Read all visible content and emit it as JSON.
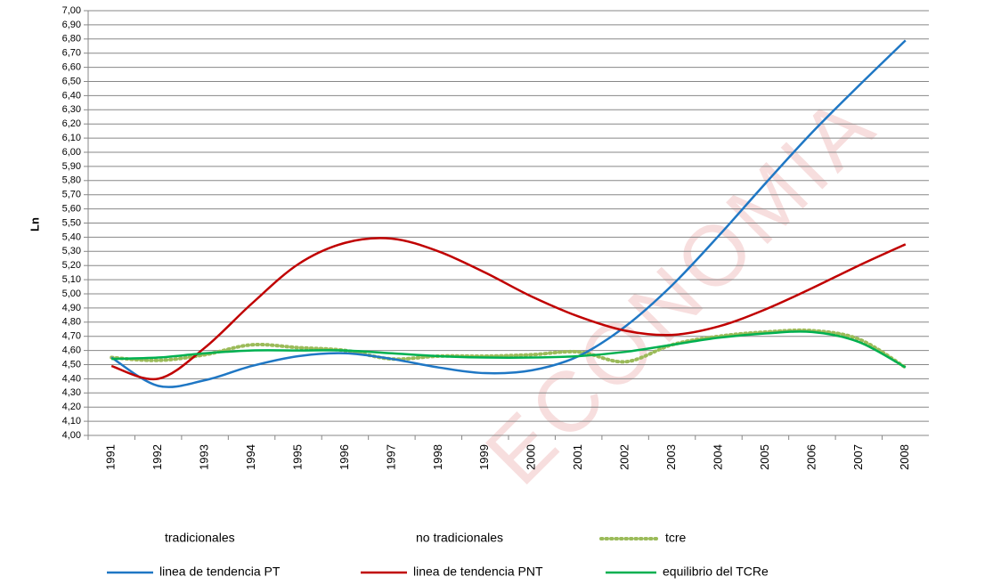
{
  "chart_data": {
    "type": "line",
    "y_label": "Ln",
    "watermark": "ECONOMIA",
    "categories": [
      "1991",
      "1992",
      "1993",
      "1994",
      "1995",
      "1996",
      "1997",
      "1998",
      "1999",
      "2000",
      "2001",
      "2002",
      "2003",
      "2004",
      "2005",
      "2006",
      "2007",
      "2008"
    ],
    "series": [
      {
        "name": "tradicionales",
        "color": "none",
        "values": [
          null,
          null,
          null,
          null,
          null,
          null,
          null,
          null,
          null,
          null,
          null,
          null,
          null,
          null,
          null,
          null,
          null,
          null
        ]
      },
      {
        "name": "no tradicionales",
        "color": "none",
        "values": [
          null,
          null,
          null,
          null,
          null,
          null,
          null,
          null,
          null,
          null,
          null,
          null,
          null,
          null,
          null,
          null,
          null,
          null
        ]
      },
      {
        "name": "tcre",
        "color": "#9bbb59",
        "dash": "dotted",
        "values": [
          4.55,
          4.53,
          4.57,
          4.64,
          4.62,
          4.6,
          4.54,
          4.56,
          4.56,
          4.57,
          4.59,
          4.52,
          4.64,
          4.7,
          4.73,
          4.74,
          4.68,
          4.48
        ]
      },
      {
        "name": "linea de tendencia PT",
        "color": "#1f77c4",
        "values": [
          4.55,
          4.35,
          4.39,
          4.49,
          4.56,
          4.58,
          4.54,
          4.48,
          4.44,
          4.46,
          4.56,
          4.77,
          5.06,
          5.41,
          5.78,
          6.14,
          6.47,
          6.79
        ]
      },
      {
        "name": "linea de tendencia PNT",
        "color": "#c00000",
        "values": [
          4.49,
          4.4,
          4.62,
          4.93,
          5.21,
          5.36,
          5.39,
          5.3,
          5.15,
          4.98,
          4.84,
          4.74,
          4.71,
          4.77,
          4.89,
          5.04,
          5.2,
          5.35
        ]
      },
      {
        "name": "equilibrio del TCRe",
        "color": "#00b050",
        "values": [
          4.54,
          4.55,
          4.58,
          4.6,
          4.6,
          4.6,
          4.58,
          4.56,
          4.55,
          4.55,
          4.56,
          4.59,
          4.64,
          4.69,
          4.72,
          4.73,
          4.66,
          4.48
        ]
      }
    ],
    "ylim": [
      4.0,
      7.0
    ],
    "yticks": [
      {
        "value": 4.0,
        "label": "4,00"
      },
      {
        "value": 4.1,
        "label": "4,10"
      },
      {
        "value": 4.2,
        "label": "4,20"
      },
      {
        "value": 4.3,
        "label": "4,30"
      },
      {
        "value": 4.4,
        "label": "4,40"
      },
      {
        "value": 4.5,
        "label": "4,50"
      },
      {
        "value": 4.6,
        "label": "4,60"
      },
      {
        "value": 4.7,
        "label": "4,70"
      },
      {
        "value": 4.8,
        "label": "4,80"
      },
      {
        "value": 4.9,
        "label": "4,90"
      },
      {
        "value": 5.0,
        "label": "5,00"
      },
      {
        "value": 5.1,
        "label": "5,10"
      },
      {
        "value": 5.2,
        "label": "5,20"
      },
      {
        "value": 5.3,
        "label": "5,30"
      },
      {
        "value": 5.4,
        "label": "5,40"
      },
      {
        "value": 5.5,
        "label": "5,50"
      },
      {
        "value": 5.6,
        "label": "5,60"
      },
      {
        "value": 5.7,
        "label": "5,70"
      },
      {
        "value": 5.8,
        "label": "5,80"
      },
      {
        "value": 5.9,
        "label": "5,90"
      },
      {
        "value": 6.0,
        "label": "6,00"
      },
      {
        "value": 6.1,
        "label": "6,10"
      },
      {
        "value": 6.2,
        "label": "6,20"
      },
      {
        "value": 6.3,
        "label": "6,30"
      },
      {
        "value": 6.4,
        "label": "6,40"
      },
      {
        "value": 6.5,
        "label": "6,50"
      },
      {
        "value": 6.6,
        "label": "6,60"
      },
      {
        "value": 6.7,
        "label": "6,70"
      },
      {
        "value": 6.8,
        "label": "6,80"
      },
      {
        "value": 6.9,
        "label": "6,90"
      },
      {
        "value": 7.0,
        "label": "7,00"
      }
    ],
    "grid": true,
    "legend": "bottom"
  }
}
